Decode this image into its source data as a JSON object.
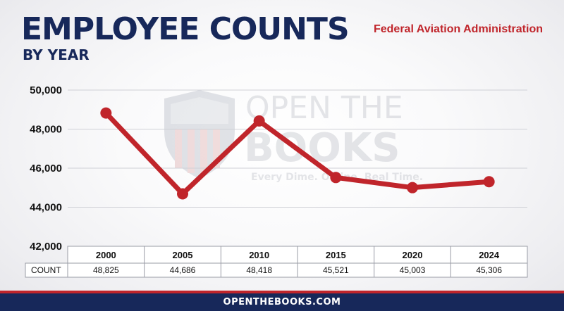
{
  "header": {
    "title": "EMPLOYEE COUNTS",
    "subtitle": "BY YEAR",
    "agency": "Federal Aviation Administration"
  },
  "watermark": {
    "line1": "OPEN THE",
    "line2": "BOOKS",
    "tagline": "Every Dime. Online. Real Time."
  },
  "footer": {
    "text": "OPENTHEBOOKS.COM"
  },
  "colors": {
    "line": "#c0252b",
    "navy": "#17285a",
    "accent_red": "#c0252b"
  },
  "chart_data": {
    "type": "line",
    "title": "EMPLOYEE COUNTS",
    "subtitle": "BY YEAR",
    "categories": [
      "2000",
      "2005",
      "2010",
      "2015",
      "2020",
      "2024"
    ],
    "series": [
      {
        "values": [
          48825,
          44686,
          48418,
          45521,
          45003,
          45306
        ]
      }
    ],
    "yticks": [
      "50,000",
      "48,000",
      "46,000",
      "44,000",
      "42,000"
    ],
    "ylim": [
      42000,
      50000
    ],
    "grid": true,
    "table": {
      "row_label": "COUNT",
      "values": [
        "48,825",
        "44,686",
        "48,418",
        "45,521",
        "45,003",
        "45,306"
      ]
    }
  }
}
